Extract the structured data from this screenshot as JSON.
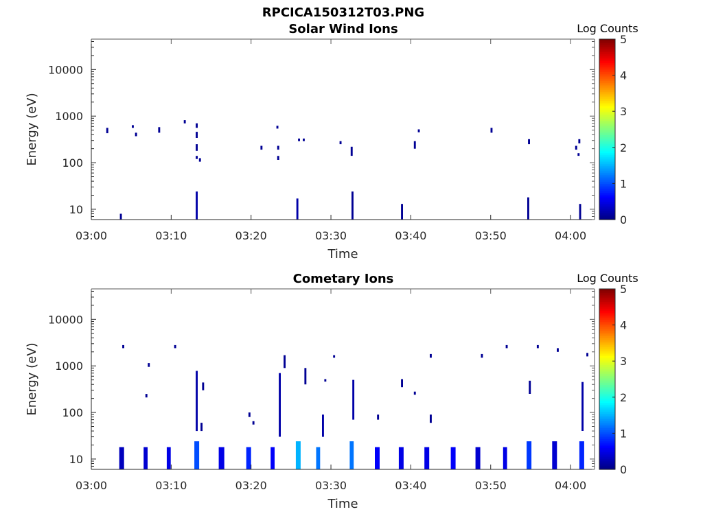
{
  "figure_title": "RPCICA150312T03.PNG",
  "colorbar": {
    "label": "Log Counts",
    "ticks": [
      "0",
      "1",
      "2",
      "3",
      "4",
      "5"
    ],
    "range": [
      0,
      5
    ],
    "colormap": "jet"
  },
  "chart_data": [
    {
      "type": "heatmap",
      "title": "Solar Wind Ions",
      "xlabel": "Time",
      "ylabel": "Energy (eV)",
      "xticks": [
        "03:00",
        "03:10",
        "03:20",
        "03:30",
        "03:40",
        "03:50",
        "04:00"
      ],
      "yticks": [
        "10",
        "100",
        "1000",
        "10000"
      ],
      "ylim": [
        6,
        45000
      ],
      "yscale": "log",
      "xlim": [
        "03:00",
        "04:03"
      ],
      "grid": false,
      "colorbar_label": "Log Counts",
      "cells": [
        {
          "t": "03:02.0",
          "e": [
            430,
            560
          ],
          "v": 0.1
        },
        {
          "t": "03:03.7",
          "e": [
            6,
            8
          ],
          "v": 0.1
        },
        {
          "t": "03:05.2",
          "e": [
            560,
            640
          ],
          "v": 0.1
        },
        {
          "t": "03:05.6",
          "e": [
            370,
            440
          ],
          "v": 0.1
        },
        {
          "t": "03:08.5",
          "e": [
            440,
            580
          ],
          "v": 0.1
        },
        {
          "t": "03:11.7",
          "e": [
            700,
            820
          ],
          "v": 0.1
        },
        {
          "t": "03:13.2",
          "e": [
            560,
            700
          ],
          "v": 0.1
        },
        {
          "t": "03:13.2",
          "e": [
            340,
            460
          ],
          "v": 0.1
        },
        {
          "t": "03:13.2",
          "e": [
            180,
            250
          ],
          "v": 0.1
        },
        {
          "t": "03:13.2",
          "e": [
            120,
            140
          ],
          "v": 0.1
        },
        {
          "t": "03:13.2",
          "e": [
            6,
            24
          ],
          "v": 0.2
        },
        {
          "t": "03:13.6",
          "e": [
            105,
            125
          ],
          "v": 0.1
        },
        {
          "t": "03:21.3",
          "e": [
            190,
            230
          ],
          "v": 0.1
        },
        {
          "t": "03:23.3",
          "e": [
            540,
            620
          ],
          "v": 0.1
        },
        {
          "t": "03:23.4",
          "e": [
            190,
            230
          ],
          "v": 0.1
        },
        {
          "t": "03:23.4",
          "e": [
            115,
            140
          ],
          "v": 0.1
        },
        {
          "t": "03:25.8",
          "e": [
            6,
            17
          ],
          "v": 0.2
        },
        {
          "t": "03:26.0",
          "e": [
            290,
            330
          ],
          "v": 0.1
        },
        {
          "t": "03:26.6",
          "e": [
            290,
            330
          ],
          "v": 0.1
        },
        {
          "t": "03:31.2",
          "e": [
            250,
            290
          ],
          "v": 0.1
        },
        {
          "t": "03:32.6",
          "e": [
            140,
            220
          ],
          "v": 0.1
        },
        {
          "t": "03:32.7",
          "e": [
            6,
            24
          ],
          "v": 0.1
        },
        {
          "t": "03:38.9",
          "e": [
            6,
            13
          ],
          "v": 0.1
        },
        {
          "t": "03:40.5",
          "e": [
            200,
            290
          ],
          "v": 0.1
        },
        {
          "t": "03:41.0",
          "e": [
            450,
            520
          ],
          "v": 0.1
        },
        {
          "t": "03:50.1",
          "e": [
            440,
            560
          ],
          "v": 0.1
        },
        {
          "t": "03:54.7",
          "e": [
            6,
            18
          ],
          "v": 0.1
        },
        {
          "t": "03:54.8",
          "e": [
            250,
            320
          ],
          "v": 0.1
        },
        {
          "t": "04:00.7",
          "e": [
            190,
            230
          ],
          "v": 0.1
        },
        {
          "t": "04:01.0",
          "e": [
            140,
            160
          ],
          "v": 0.1
        },
        {
          "t": "04:01.1",
          "e": [
            260,
            320
          ],
          "v": 0.1
        },
        {
          "t": "04:01.2",
          "e": [
            6,
            13
          ],
          "v": 0.1
        }
      ]
    },
    {
      "type": "heatmap",
      "title": "Cometary Ions",
      "xlabel": "Time",
      "ylabel": "Energy (eV)",
      "xticks": [
        "03:00",
        "03:10",
        "03:20",
        "03:30",
        "03:40",
        "03:50",
        "04:00"
      ],
      "yticks": [
        "10",
        "100",
        "1000",
        "10000"
      ],
      "ylim": [
        6,
        45000
      ],
      "yscale": "log",
      "xlim": [
        "03:00",
        "04:03"
      ],
      "grid": false,
      "colorbar_label": "Log Counts",
      "cells": [
        {
          "t": "03:03.8",
          "w": 0.6,
          "e": [
            6,
            18
          ],
          "v": 0.3
        },
        {
          "t": "03:04.0",
          "e": [
            2400,
            2800
          ],
          "v": 0.1
        },
        {
          "t": "03:06.8",
          "w": 0.5,
          "e": [
            6,
            18
          ],
          "v": 0.4
        },
        {
          "t": "03:06.9",
          "e": [
            210,
            250
          ],
          "v": 0.1
        },
        {
          "t": "03:07.2",
          "e": [
            950,
            1150
          ],
          "v": 0.1
        },
        {
          "t": "03:09.7",
          "w": 0.5,
          "e": [
            6,
            18
          ],
          "v": 0.5
        },
        {
          "t": "03:10.5",
          "e": [
            2400,
            2800
          ],
          "v": 0.1
        },
        {
          "t": "03:13.2",
          "w": 0.6,
          "e": [
            6,
            24
          ],
          "v": 1.0
        },
        {
          "t": "03:13.2",
          "e": [
            40,
            780
          ],
          "v": 0.2
        },
        {
          "t": "03:13.8",
          "e": [
            40,
            60
          ],
          "v": 0.1
        },
        {
          "t": "03:14.0",
          "e": [
            300,
            440
          ],
          "v": 0.1
        },
        {
          "t": "03:16.3",
          "w": 0.7,
          "e": [
            6,
            18
          ],
          "v": 0.5
        },
        {
          "t": "03:19.7",
          "w": 0.6,
          "e": [
            6,
            18
          ],
          "v": 0.8
        },
        {
          "t": "03:19.8",
          "e": [
            80,
            100
          ],
          "v": 0.1
        },
        {
          "t": "03:20.3",
          "e": [
            55,
            65
          ],
          "v": 0.1
        },
        {
          "t": "03:22.7",
          "w": 0.5,
          "e": [
            6,
            18
          ],
          "v": 0.6
        },
        {
          "t": "03:23.6",
          "e": [
            30,
            700
          ],
          "v": 0.2
        },
        {
          "t": "03:24.2",
          "e": [
            900,
            1700
          ],
          "v": 0.1
        },
        {
          "t": "03:25.9",
          "w": 0.6,
          "e": [
            6,
            24
          ],
          "v": 1.5
        },
        {
          "t": "03:26.8",
          "e": [
            400,
            900
          ],
          "v": 0.1
        },
        {
          "t": "03:28.4",
          "w": 0.5,
          "e": [
            6,
            18
          ],
          "v": 1.2
        },
        {
          "t": "03:29.0",
          "e": [
            30,
            90
          ],
          "v": 0.2
        },
        {
          "t": "03:29.3",
          "e": [
            460,
            520
          ],
          "v": 0.1
        },
        {
          "t": "03:30.4",
          "e": [
            1500,
            1700
          ],
          "v": 0.1
        },
        {
          "t": "03:32.6",
          "w": 0.5,
          "e": [
            6,
            24
          ],
          "v": 1.2
        },
        {
          "t": "03:32.8",
          "e": [
            70,
            500
          ],
          "v": 0.2
        },
        {
          "t": "03:35.8",
          "w": 0.6,
          "e": [
            6,
            18
          ],
          "v": 0.6
        },
        {
          "t": "03:35.9",
          "e": [
            70,
            90
          ],
          "v": 0.1
        },
        {
          "t": "03:38.8",
          "w": 0.6,
          "e": [
            6,
            18
          ],
          "v": 0.5
        },
        {
          "t": "03:38.9",
          "e": [
            350,
            520
          ],
          "v": 0.1
        },
        {
          "t": "03:40.5",
          "e": [
            240,
            280
          ],
          "v": 0.1
        },
        {
          "t": "03:42.0",
          "w": 0.6,
          "e": [
            6,
            18
          ],
          "v": 0.5
        },
        {
          "t": "03:42.5",
          "e": [
            1500,
            1800
          ],
          "v": 0.1
        },
        {
          "t": "03:42.5",
          "e": [
            60,
            90
          ],
          "v": 0.1
        },
        {
          "t": "03:45.3",
          "w": 0.6,
          "e": [
            6,
            18
          ],
          "v": 0.6
        },
        {
          "t": "03:48.4",
          "w": 0.6,
          "e": [
            6,
            18
          ],
          "v": 0.4
        },
        {
          "t": "03:48.9",
          "e": [
            1500,
            1800
          ],
          "v": 0.1
        },
        {
          "t": "03:51.8",
          "w": 0.5,
          "e": [
            6,
            18
          ],
          "v": 0.5
        },
        {
          "t": "03:52.0",
          "e": [
            2400,
            2800
          ],
          "v": 0.1
        },
        {
          "t": "03:54.8",
          "w": 0.6,
          "e": [
            6,
            24
          ],
          "v": 0.9
        },
        {
          "t": "03:54.9",
          "e": [
            250,
            480
          ],
          "v": 0.1
        },
        {
          "t": "03:55.9",
          "e": [
            2400,
            2800
          ],
          "v": 0.1
        },
        {
          "t": "03:58.0",
          "w": 0.6,
          "e": [
            6,
            24
          ],
          "v": 0.4
        },
        {
          "t": "03:58.4",
          "e": [
            2000,
            2400
          ],
          "v": 0.1
        },
        {
          "t": "04:01.4",
          "w": 0.6,
          "e": [
            6,
            24
          ],
          "v": 0.8
        },
        {
          "t": "04:01.5",
          "e": [
            40,
            450
          ],
          "v": 0.2
        },
        {
          "t": "04:02.1",
          "e": [
            1600,
            1900
          ],
          "v": 0.1
        }
      ]
    }
  ]
}
